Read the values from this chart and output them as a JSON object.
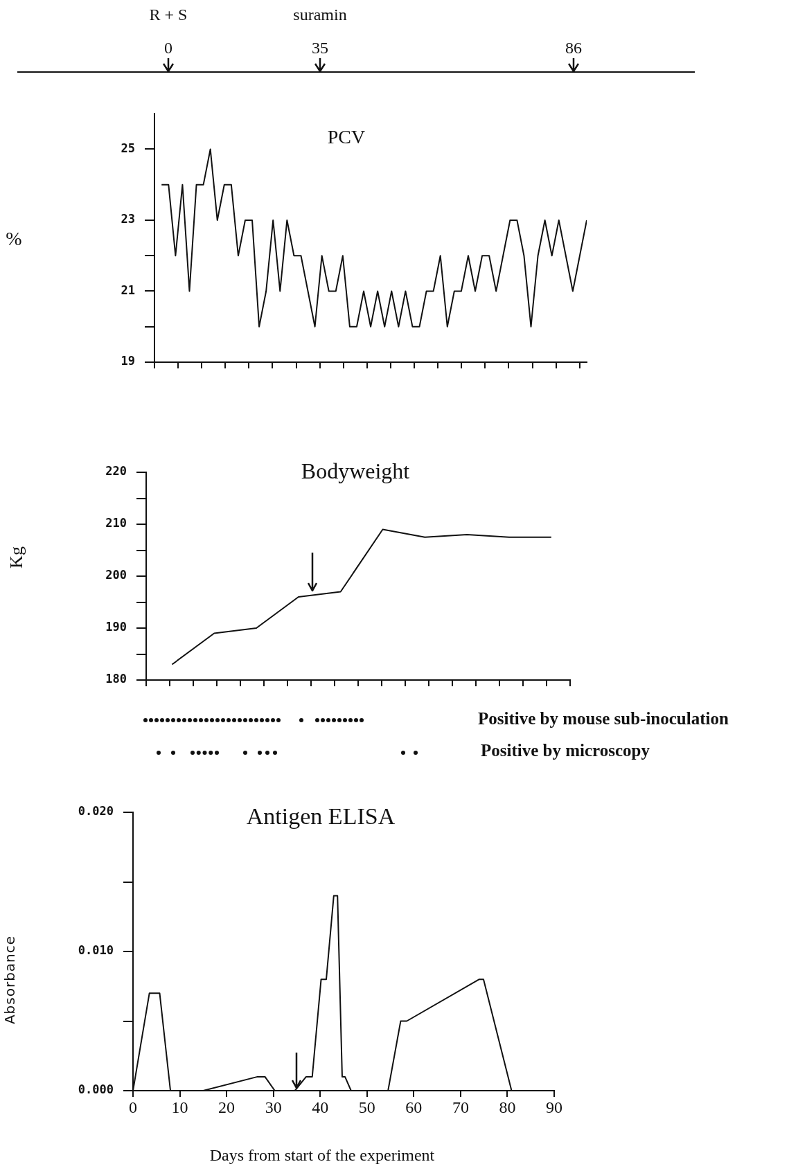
{
  "chart_data": [
    {
      "type": "other",
      "categories": [
        "0",
        "35",
        "86"
      ],
      "annotations": [
        {
          "text": "R + S",
          "x": "0"
        },
        {
          "text": "suramin",
          "x": "35"
        }
      ]
    },
    {
      "type": "line",
      "title": "PCV",
      "ylabel": "%",
      "color": "#111111",
      "categories": [
        null,
        null,
        null,
        null,
        null,
        null,
        null,
        null,
        null,
        null,
        null,
        null,
        null,
        null,
        null,
        null,
        null,
        null,
        null,
        null,
        null,
        null,
        null,
        null,
        null,
        null,
        null,
        null,
        null,
        null,
        null,
        null,
        null,
        null,
        null,
        null,
        null,
        null,
        null,
        null,
        null,
        null,
        null,
        null,
        null,
        null,
        null,
        null,
        null,
        null,
        null,
        null,
        null,
        null,
        null,
        null,
        null,
        null,
        null,
        null,
        null,
        null
      ],
      "values": [
        24,
        24,
        22,
        24,
        21,
        24,
        24,
        25,
        23,
        24,
        24,
        22,
        23,
        23,
        20,
        21,
        23,
        21,
        23,
        22,
        22,
        21,
        20,
        22,
        21,
        21,
        22,
        20,
        20,
        21,
        20,
        21,
        20,
        21,
        20,
        21,
        20,
        20,
        21,
        21,
        22,
        20,
        21,
        21,
        22,
        21,
        22,
        22,
        21,
        22,
        23,
        23,
        22,
        20,
        22,
        23,
        22,
        23,
        22,
        21,
        22,
        23
      ],
      "ylim": [
        19,
        26
      ],
      "yticks": [
        19,
        {
          "value": 20,
          "label": null
        },
        21,
        {
          "value": 22,
          "label": null
        },
        23,
        25
      ],
      "tick_labels": "y"
    },
    {
      "type": "line",
      "title": "Bodyweight",
      "ylabel": "Kg",
      "color": "#111111",
      "categories": [
        null,
        null,
        null,
        null,
        null,
        null,
        null,
        null,
        null,
        null
      ],
      "values": [
        183,
        189,
        190,
        196,
        197,
        209,
        207.5,
        208,
        207.5,
        207.5
      ],
      "ylim": [
        180,
        220
      ],
      "yticks": [
        180,
        {
          "value": 185,
          "label": null
        },
        190,
        {
          "value": 195,
          "label": null
        },
        200,
        {
          "value": 205,
          "label": null
        },
        210,
        {
          "value": 215,
          "label": null
        },
        220
      ],
      "tick_labels": "y",
      "annotations": [
        "Positive by mouse sub-inoculation",
        "Positive by microscopy"
      ]
    },
    {
      "type": "line",
      "title": "Antigen ELISA",
      "xlabel": "Days from start of the experiment",
      "ylabel": "Absorbance",
      "color": "#111111",
      "x": [
        0,
        3.5,
        5.7,
        8,
        15,
        26.6,
        28.2,
        30.3,
        34.6,
        37,
        38.3,
        40.2,
        41.3,
        42.9,
        43.7,
        44.7,
        45.3,
        46.6,
        54.5,
        57.2,
        58.5,
        74,
        74.9,
        80.9,
        82
      ],
      "values": [
        0,
        0.007,
        0.007,
        0,
        0,
        0.001,
        0.001,
        0,
        0,
        0.001,
        0.001,
        0.008,
        0.008,
        0.014,
        0.014,
        0.001,
        0.001,
        0,
        0,
        0.005,
        0.005,
        0.008,
        0.008,
        0,
        0
      ],
      "xlim": [
        0,
        90
      ],
      "xticks": [
        0,
        10,
        20,
        30,
        40,
        50,
        60,
        70,
        80,
        90
      ],
      "ylim": [
        0,
        0.02
      ],
      "yticks": [
        {
          "value": 0,
          "label": "0.000"
        },
        {
          "value": 0.005,
          "label": null
        },
        {
          "value": 0.01,
          "label": "0.010"
        },
        {
          "value": 0.015,
          "label": null
        },
        {
          "value": 0.02,
          "label": "0.020"
        }
      ]
    }
  ]
}
